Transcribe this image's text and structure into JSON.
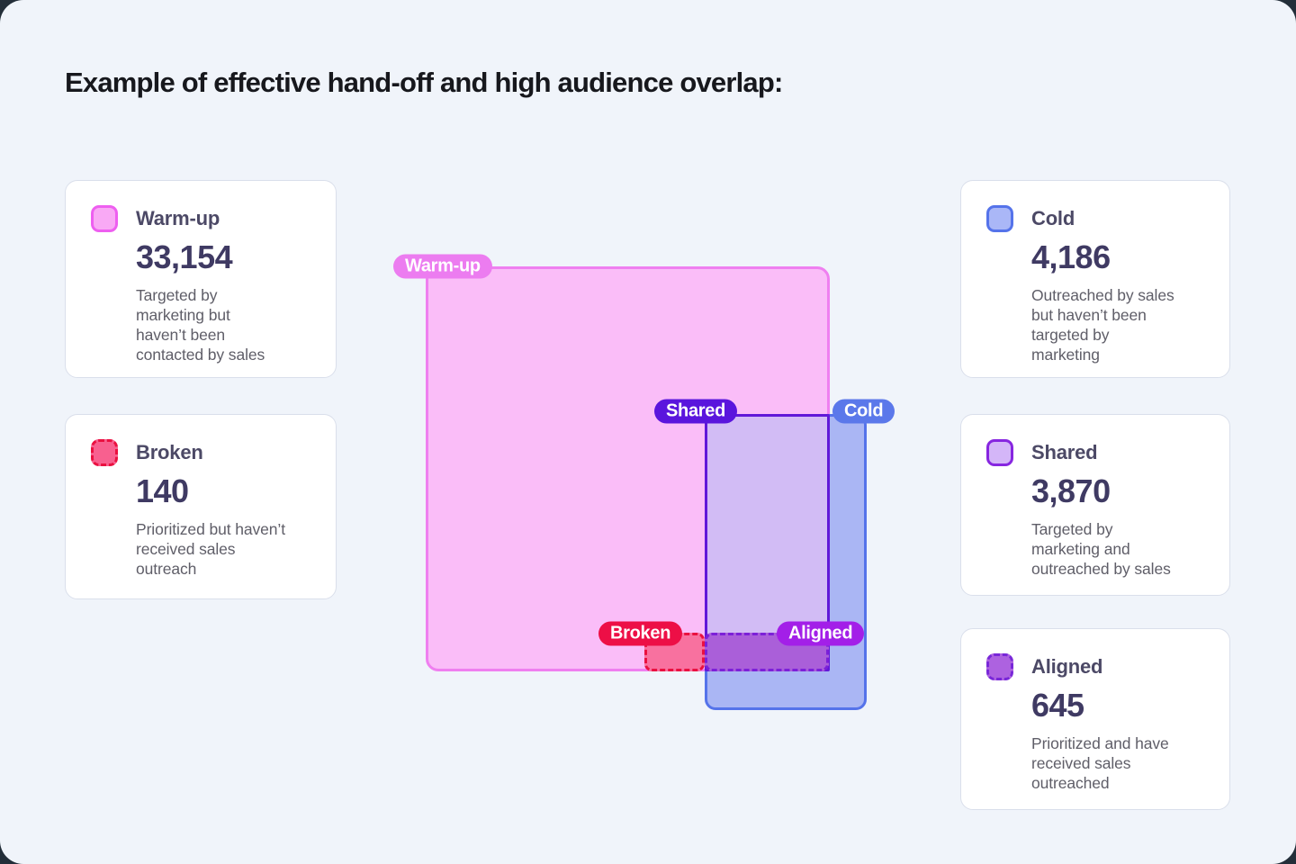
{
  "page": {
    "title": "Example of effective hand-off and high audience overlap:",
    "background": "#f0f4fa",
    "outer_background": "#232e39"
  },
  "cards": [
    {
      "label": "Warm-up",
      "value": "33,154",
      "description": "Targeted by\nmarketing but\nhaven’t been\ncontacted by sales",
      "swatch_fill": "#f9a9f5",
      "swatch_border": "#ee5ff0",
      "swatch_style": "solid"
    },
    {
      "label": "Broken",
      "value": "140",
      "description": "Prioritized but haven’t\nreceived sales\noutreach",
      "swatch_fill": "#f8608f",
      "swatch_border": "#ea1040",
      "swatch_style": "dashed"
    },
    {
      "label": "Cold",
      "value": "4,186",
      "description": "Outreached by sales\nbut haven’t been\ntargeted by\nmarketing",
      "swatch_fill": "#aab7f7",
      "swatch_border": "#5573ea",
      "swatch_style": "solid"
    },
    {
      "label": "Shared",
      "value": "3,870",
      "description": "Targeted by\nmarketing and\noutreached by sales",
      "swatch_fill": "#d4b6f8",
      "swatch_border": "#8726e0",
      "swatch_style": "solid"
    },
    {
      "label": "Aligned",
      "value": "645",
      "description": "Prioritized and have\nreceived sales\noutreached",
      "swatch_fill": "#ad62e0",
      "swatch_border": "#7927d8",
      "swatch_style": "dashed"
    }
  ],
  "diagram": {
    "regions": {
      "warmup": {
        "fill": "#fabdf8",
        "border": "#ef7ff0",
        "border_style": "solid"
      },
      "cold": {
        "fill": "#aab6f4",
        "border": "#5573ea",
        "border_style": "solid"
      },
      "shared": {
        "fill": "#d2bcf5",
        "border": "#6118d8",
        "border_style": "solid"
      },
      "broken": {
        "fill": "#f8719f",
        "border": "#ea1040",
        "border_style": "dashed"
      },
      "aligned": {
        "fill": "#aa5fd9",
        "border": "#7c20d8",
        "border_style": "dashed"
      }
    },
    "pills": {
      "warmup": {
        "label": "Warm-up",
        "bg": "#ec7cf0"
      },
      "shared": {
        "label": "Shared",
        "bg": "#5a15dd"
      },
      "cold": {
        "label": "Cold",
        "bg": "#5b78ea"
      },
      "broken": {
        "label": "Broken",
        "bg": "#ed0f46"
      },
      "aligned": {
        "label": "Aligned",
        "bg": "#a31fe8"
      }
    }
  }
}
